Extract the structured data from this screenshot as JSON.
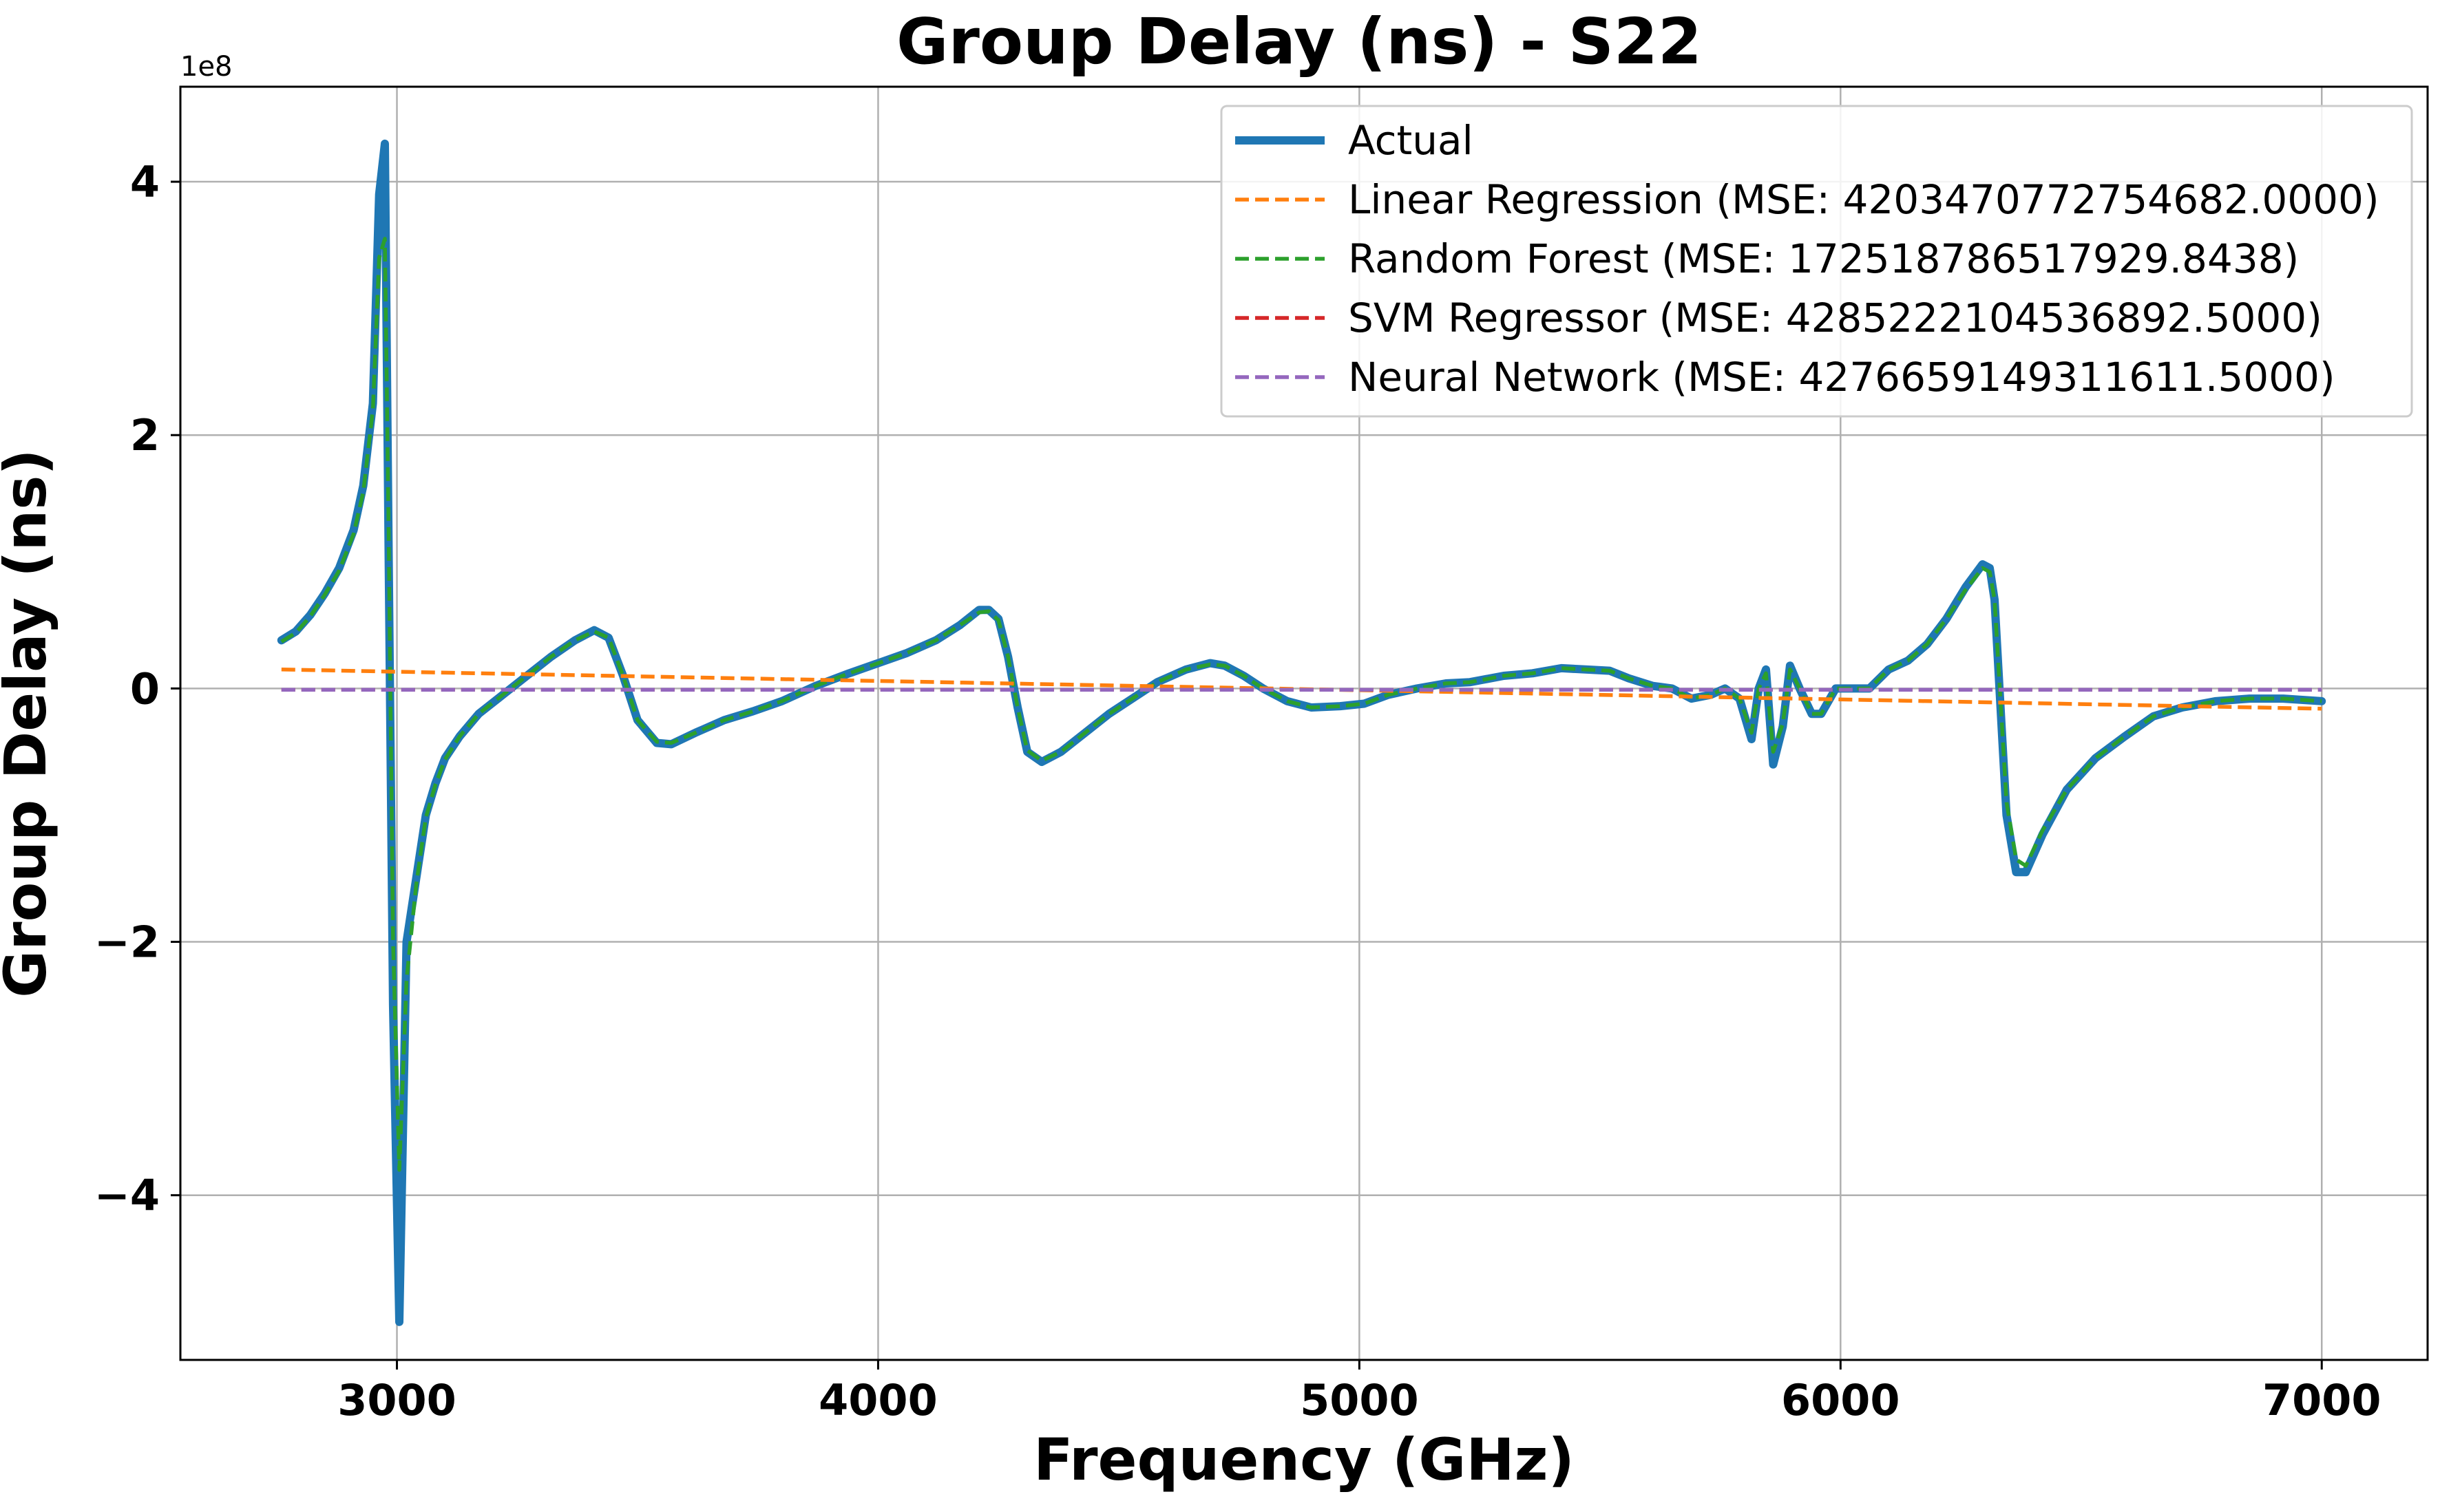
{
  "chart_data": {
    "type": "line",
    "title": "Group Delay (ns) - S22",
    "xlabel": "Frequency (GHz)",
    "ylabel": "Group Delay (ns)",
    "y_offset_label": "1e8",
    "xlim": [
      2550,
      7220
    ],
    "ylim": [
      -5.3,
      4.75
    ],
    "y_scale_note": "values in units of 1e8",
    "x_ticks": [
      3000,
      4000,
      5000,
      6000,
      7000
    ],
    "x_tick_labels": [
      "3000",
      "4000",
      "5000",
      "6000",
      "7000"
    ],
    "y_ticks": [
      -4,
      -2,
      0,
      2,
      4
    ],
    "y_tick_labels": [
      "−4",
      "−2",
      "0",
      "2",
      "4"
    ],
    "grid": true,
    "legend_position": "top-right",
    "series": [
      {
        "name": "Actual",
        "color": "#1f77b4",
        "style": "solid",
        "points": [
          [
            2760,
            0.38
          ],
          [
            2790,
            0.45
          ],
          [
            2820,
            0.58
          ],
          [
            2850,
            0.75
          ],
          [
            2880,
            0.95
          ],
          [
            2910,
            1.25
          ],
          [
            2930,
            1.6
          ],
          [
            2950,
            2.25
          ],
          [
            2963,
            3.9
          ],
          [
            2975,
            4.3
          ],
          [
            2983,
            1.0
          ],
          [
            2992,
            -2.5
          ],
          [
            3005,
            -5.0
          ],
          [
            3020,
            -2.0
          ],
          [
            3040,
            -1.5
          ],
          [
            3060,
            -1.0
          ],
          [
            3080,
            -0.75
          ],
          [
            3100,
            -0.55
          ],
          [
            3130,
            -0.38
          ],
          [
            3170,
            -0.2
          ],
          [
            3220,
            -0.05
          ],
          [
            3270,
            0.1
          ],
          [
            3320,
            0.25
          ],
          [
            3370,
            0.38
          ],
          [
            3410,
            0.46
          ],
          [
            3440,
            0.4
          ],
          [
            3470,
            0.1
          ],
          [
            3500,
            -0.25
          ],
          [
            3540,
            -0.43
          ],
          [
            3570,
            -0.44
          ],
          [
            3620,
            -0.35
          ],
          [
            3680,
            -0.25
          ],
          [
            3740,
            -0.18
          ],
          [
            3800,
            -0.1
          ],
          [
            3870,
            0.02
          ],
          [
            3940,
            0.12
          ],
          [
            4000,
            0.2
          ],
          [
            4060,
            0.28
          ],
          [
            4120,
            0.38
          ],
          [
            4170,
            0.5
          ],
          [
            4210,
            0.62
          ],
          [
            4230,
            0.62
          ],
          [
            4250,
            0.55
          ],
          [
            4270,
            0.25
          ],
          [
            4290,
            -0.15
          ],
          [
            4310,
            -0.5
          ],
          [
            4340,
            -0.58
          ],
          [
            4380,
            -0.5
          ],
          [
            4430,
            -0.35
          ],
          [
            4480,
            -0.2
          ],
          [
            4540,
            -0.05
          ],
          [
            4580,
            0.05
          ],
          [
            4640,
            0.15
          ],
          [
            4690,
            0.2
          ],
          [
            4720,
            0.18
          ],
          [
            4760,
            0.1
          ],
          [
            4800,
            0.0
          ],
          [
            4850,
            -0.1
          ],
          [
            4900,
            -0.15
          ],
          [
            4960,
            -0.14
          ],
          [
            5010,
            -0.12
          ],
          [
            5060,
            -0.05
          ],
          [
            5120,
            0.0
          ],
          [
            5180,
            0.04
          ],
          [
            5230,
            0.05
          ],
          [
            5300,
            0.1
          ],
          [
            5360,
            0.12
          ],
          [
            5420,
            0.16
          ],
          [
            5470,
            0.15
          ],
          [
            5520,
            0.14
          ],
          [
            5560,
            0.08
          ],
          [
            5610,
            0.02
          ],
          [
            5650,
            0.0
          ],
          [
            5690,
            -0.08
          ],
          [
            5730,
            -0.05
          ],
          [
            5760,
            0.0
          ],
          [
            5790,
            -0.08
          ],
          [
            5815,
            -0.4
          ],
          [
            5830,
            0.0
          ],
          [
            5845,
            0.15
          ],
          [
            5860,
            -0.6
          ],
          [
            5880,
            -0.3
          ],
          [
            5895,
            0.18
          ],
          [
            5915,
            0.0
          ],
          [
            5940,
            -0.2
          ],
          [
            5960,
            -0.2
          ],
          [
            5990,
            0.0
          ],
          [
            6020,
            0.0
          ],
          [
            6060,
            0.0
          ],
          [
            6100,
            0.15
          ],
          [
            6140,
            0.22
          ],
          [
            6180,
            0.35
          ],
          [
            6220,
            0.55
          ],
          [
            6260,
            0.8
          ],
          [
            6295,
            0.98
          ],
          [
            6310,
            0.95
          ],
          [
            6320,
            0.7
          ],
          [
            6345,
            -1.0
          ],
          [
            6365,
            -1.45
          ],
          [
            6385,
            -1.45
          ],
          [
            6420,
            -1.15
          ],
          [
            6470,
            -0.8
          ],
          [
            6530,
            -0.55
          ],
          [
            6590,
            -0.38
          ],
          [
            6650,
            -0.22
          ],
          [
            6710,
            -0.15
          ],
          [
            6780,
            -0.1
          ],
          [
            6850,
            -0.08
          ],
          [
            6920,
            -0.08
          ],
          [
            7000,
            -0.1
          ]
        ]
      },
      {
        "name": "Linear Regression (MSE: 4203470772754682.0000)",
        "color": "#ff7f0e",
        "style": "dashed",
        "points": [
          [
            2760,
            0.15
          ],
          [
            7000,
            -0.16
          ]
        ]
      },
      {
        "name": "Random Forest (MSE: 172518786517929.8438)",
        "color": "#2ca02c",
        "style": "dashed",
        "points": [
          [
            2760,
            0.37
          ],
          [
            2790,
            0.44
          ],
          [
            2820,
            0.57
          ],
          [
            2850,
            0.74
          ],
          [
            2880,
            0.93
          ],
          [
            2910,
            1.22
          ],
          [
            2930,
            1.55
          ],
          [
            2950,
            2.2
          ],
          [
            2963,
            3.4
          ],
          [
            2975,
            3.55
          ],
          [
            2983,
            1.2
          ],
          [
            2992,
            -2.0
          ],
          [
            3005,
            -3.8
          ],
          [
            3020,
            -2.3
          ],
          [
            3040,
            -1.55
          ],
          [
            3060,
            -1.02
          ],
          [
            3080,
            -0.76
          ],
          [
            3100,
            -0.56
          ],
          [
            3130,
            -0.38
          ],
          [
            3170,
            -0.2
          ],
          [
            3220,
            -0.05
          ],
          [
            3270,
            0.1
          ],
          [
            3320,
            0.25
          ],
          [
            3370,
            0.38
          ],
          [
            3410,
            0.45
          ],
          [
            3440,
            0.4
          ],
          [
            3470,
            0.1
          ],
          [
            3500,
            -0.25
          ],
          [
            3540,
            -0.42
          ],
          [
            3570,
            -0.43
          ],
          [
            3620,
            -0.35
          ],
          [
            3680,
            -0.25
          ],
          [
            3740,
            -0.18
          ],
          [
            3800,
            -0.1
          ],
          [
            3870,
            0.02
          ],
          [
            3940,
            0.12
          ],
          [
            4000,
            0.2
          ],
          [
            4060,
            0.28
          ],
          [
            4120,
            0.38
          ],
          [
            4170,
            0.5
          ],
          [
            4210,
            0.6
          ],
          [
            4230,
            0.61
          ],
          [
            4250,
            0.54
          ],
          [
            4270,
            0.25
          ],
          [
            4290,
            -0.15
          ],
          [
            4310,
            -0.49
          ],
          [
            4340,
            -0.57
          ],
          [
            4380,
            -0.5
          ],
          [
            4430,
            -0.35
          ],
          [
            4480,
            -0.2
          ],
          [
            4540,
            -0.05
          ],
          [
            4580,
            0.05
          ],
          [
            4640,
            0.15
          ],
          [
            4690,
            0.19
          ],
          [
            4720,
            0.18
          ],
          [
            4760,
            0.1
          ],
          [
            4800,
            0.0
          ],
          [
            4850,
            -0.1
          ],
          [
            4900,
            -0.15
          ],
          [
            4960,
            -0.14
          ],
          [
            5010,
            -0.12
          ],
          [
            5060,
            -0.05
          ],
          [
            5120,
            0.0
          ],
          [
            5180,
            0.04
          ],
          [
            5230,
            0.05
          ],
          [
            5300,
            0.1
          ],
          [
            5360,
            0.12
          ],
          [
            5420,
            0.16
          ],
          [
            5470,
            0.15
          ],
          [
            5520,
            0.14
          ],
          [
            5560,
            0.08
          ],
          [
            5610,
            0.02
          ],
          [
            5650,
            0.0
          ],
          [
            5690,
            -0.08
          ],
          [
            5730,
            -0.05
          ],
          [
            5760,
            0.0
          ],
          [
            5790,
            -0.08
          ],
          [
            5815,
            -0.35
          ],
          [
            5830,
            0.0
          ],
          [
            5845,
            0.12
          ],
          [
            5860,
            -0.5
          ],
          [
            5880,
            -0.28
          ],
          [
            5895,
            0.15
          ],
          [
            5915,
            0.0
          ],
          [
            5940,
            -0.2
          ],
          [
            5960,
            -0.2
          ],
          [
            5990,
            0.0
          ],
          [
            6020,
            0.0
          ],
          [
            6060,
            0.0
          ],
          [
            6100,
            0.15
          ],
          [
            6140,
            0.22
          ],
          [
            6180,
            0.35
          ],
          [
            6220,
            0.55
          ],
          [
            6260,
            0.78
          ],
          [
            6295,
            0.95
          ],
          [
            6310,
            0.92
          ],
          [
            6320,
            0.7
          ],
          [
            6345,
            -0.9
          ],
          [
            6365,
            -1.35
          ],
          [
            6385,
            -1.4
          ],
          [
            6420,
            -1.12
          ],
          [
            6470,
            -0.8
          ],
          [
            6530,
            -0.55
          ],
          [
            6590,
            -0.38
          ],
          [
            6650,
            -0.22
          ],
          [
            6710,
            -0.15
          ],
          [
            6780,
            -0.1
          ],
          [
            6850,
            -0.08
          ],
          [
            6920,
            -0.08
          ],
          [
            7000,
            -0.1
          ]
        ]
      },
      {
        "name": "SVM Regressor (MSE: 4285222104536892.5000)",
        "color": "#d62728",
        "style": "dashed",
        "points": [
          [
            2760,
            -0.01
          ],
          [
            7000,
            -0.01
          ]
        ]
      },
      {
        "name": "Neural Network (MSE: 4276659149311611.5000)",
        "color": "#9467bd",
        "style": "dashed",
        "points": [
          [
            2760,
            -0.01
          ],
          [
            7000,
            -0.01
          ]
        ]
      }
    ]
  }
}
